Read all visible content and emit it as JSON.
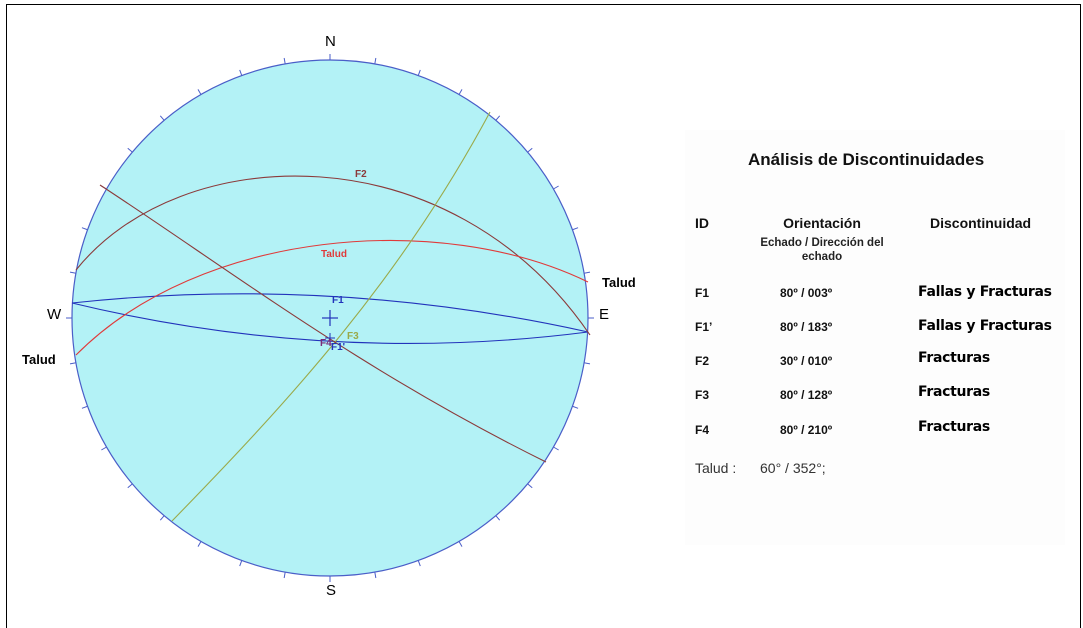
{
  "stereonet": {
    "cardinals": {
      "north": "N",
      "south": "S",
      "east": "E",
      "west": "W"
    },
    "colors": {
      "background": "#b3f2f6",
      "primitive": "#4a5ec8",
      "f1": "#2233bb",
      "f2": "#8b3a3a",
      "talud": "#e03a3a",
      "f3": "#9aaa4a",
      "f4": "#7a2a7a"
    },
    "plane_labels": {
      "f1": "F1",
      "f1p": "F1'",
      "f2": "F2",
      "f3": "F3",
      "f4": "F4",
      "talud": "Talud"
    },
    "outside_labels": {
      "talud_east": "Talud",
      "talud_west": "Talud"
    }
  },
  "table": {
    "title": "Análisis de Discontinuidades",
    "headers": {
      "id": "ID",
      "orientacion": "Orientación",
      "orientacion_sub": "Echado / Dirección del echado",
      "discontinuidad": "Discontinuidad"
    },
    "rows": [
      {
        "id": "F1",
        "orient": "80º / 003º",
        "tipo": "Fallas y Fracturas"
      },
      {
        "id": "F1’",
        "orient": "80º / 183º",
        "tipo": "Fallas y Fracturas"
      },
      {
        "id": "F2",
        "orient": "30º / 010º",
        "tipo": "Fracturas"
      },
      {
        "id": "F3",
        "orient": "80º / 128º",
        "tipo": "Fracturas"
      },
      {
        "id": "F4",
        "orient": "80º / 210º",
        "tipo": "Fracturas"
      }
    ],
    "talud": {
      "label": "Talud :",
      "value": "60° /  352°;"
    }
  }
}
